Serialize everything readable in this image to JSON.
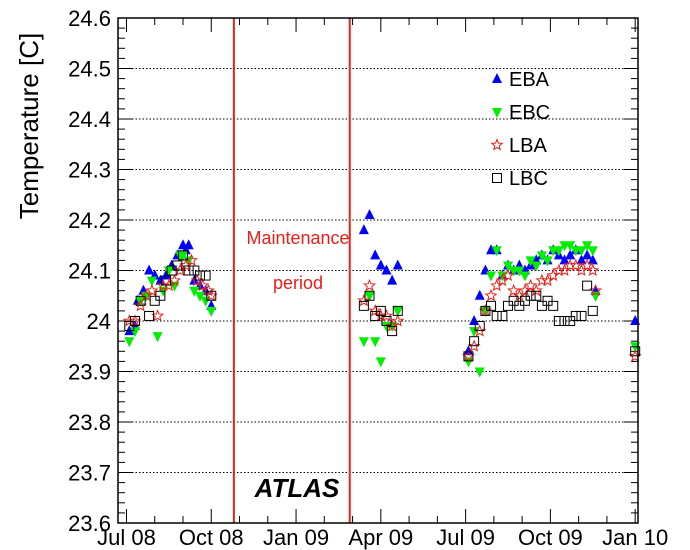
{
  "chart_data": {
    "type": "scatter",
    "title": "",
    "xlabel": "",
    "ylabel": "Temperature [C]",
    "ylim": [
      23.6,
      24.6
    ],
    "y_ticks": [
      23.6,
      23.7,
      23.8,
      23.9,
      24.0,
      24.1,
      24.2,
      24.3,
      24.4,
      24.5,
      24.6
    ],
    "y_tick_labels": [
      "23.6",
      "23.7",
      "23.8",
      "23.9",
      "24",
      "24.1",
      "24.2",
      "24.3",
      "24.4",
      "24.5",
      "24.6"
    ],
    "x_unit": "months since Jul 08",
    "xlim": [
      -0.3,
      18.1
    ],
    "x_ticks": [
      0,
      3,
      6,
      9,
      12,
      15,
      18
    ],
    "x_tick_labels": [
      "Jul 08",
      "Oct 08",
      "Jan 09",
      "Apr 09",
      "Jul 09",
      "Oct 09",
      "Jan 10"
    ],
    "grid": true,
    "legend_position": "top-right",
    "vertical_lines": [
      3.8,
      7.9
    ],
    "annotations": [
      "Maintenance",
      "period",
      "ATLAS"
    ],
    "series": [
      {
        "name": "EBA",
        "marker": "triangle-up",
        "color": "#0000ff",
        "points": [
          [
            0.1,
            23.98
          ],
          [
            0.3,
            23.99
          ],
          [
            0.4,
            24.04
          ],
          [
            0.6,
            24.06
          ],
          [
            0.8,
            24.1
          ],
          [
            1.0,
            24.09
          ],
          [
            1.2,
            24.08
          ],
          [
            1.4,
            24.09
          ],
          [
            1.6,
            24.11
          ],
          [
            1.8,
            24.13
          ],
          [
            2.0,
            24.15
          ],
          [
            2.1,
            24.14
          ],
          [
            2.2,
            24.15
          ],
          [
            2.4,
            24.08
          ],
          [
            2.6,
            24.07
          ],
          [
            2.8,
            24.06
          ],
          [
            3.0,
            24.03
          ],
          [
            8.4,
            24.18
          ],
          [
            8.6,
            24.21
          ],
          [
            8.8,
            24.13
          ],
          [
            9.0,
            24.11
          ],
          [
            9.2,
            24.1
          ],
          [
            9.4,
            24.08
          ],
          [
            9.6,
            24.11
          ],
          [
            12.1,
            23.94
          ],
          [
            12.3,
            24.0
          ],
          [
            12.5,
            24.05
          ],
          [
            12.7,
            24.1
          ],
          [
            12.9,
            24.14
          ],
          [
            13.1,
            24.14
          ],
          [
            13.3,
            24.09
          ],
          [
            13.5,
            24.11
          ],
          [
            13.7,
            24.1
          ],
          [
            13.9,
            24.11
          ],
          [
            14.1,
            24.1
          ],
          [
            14.3,
            24.11
          ],
          [
            14.5,
            24.12
          ],
          [
            14.7,
            24.13
          ],
          [
            14.9,
            24.12
          ],
          [
            15.1,
            24.14
          ],
          [
            15.3,
            24.13
          ],
          [
            15.5,
            24.12
          ],
          [
            15.7,
            24.13
          ],
          [
            15.9,
            24.14
          ],
          [
            16.1,
            24.12
          ],
          [
            16.3,
            24.13
          ],
          [
            16.5,
            24.12
          ],
          [
            16.6,
            24.06
          ],
          [
            18.0,
            24.0
          ]
        ]
      },
      {
        "name": "EBC",
        "marker": "triangle-down",
        "color": "#00ee00",
        "points": [
          [
            0.1,
            23.96
          ],
          [
            0.3,
            23.98
          ],
          [
            0.5,
            24.04
          ],
          [
            0.7,
            24.05
          ],
          [
            0.9,
            24.08
          ],
          [
            1.1,
            23.97
          ],
          [
            1.3,
            24.06
          ],
          [
            1.5,
            24.1
          ],
          [
            1.7,
            24.07
          ],
          [
            1.9,
            24.13
          ],
          [
            2.0,
            24.13
          ],
          [
            2.2,
            24.12
          ],
          [
            2.4,
            24.06
          ],
          [
            2.6,
            24.05
          ],
          [
            2.8,
            24.04
          ],
          [
            3.0,
            24.02
          ],
          [
            8.4,
            23.96
          ],
          [
            8.6,
            24.05
          ],
          [
            8.8,
            23.96
          ],
          [
            9.0,
            23.92
          ],
          [
            9.2,
            23.99
          ],
          [
            9.4,
            23.99
          ],
          [
            9.6,
            24.02
          ],
          [
            12.1,
            23.92
          ],
          [
            12.3,
            23.98
          ],
          [
            12.5,
            23.9
          ],
          [
            12.7,
            24.02
          ],
          [
            12.9,
            24.09
          ],
          [
            13.1,
            24.14
          ],
          [
            13.3,
            24.09
          ],
          [
            13.5,
            24.11
          ],
          [
            13.7,
            24.1
          ],
          [
            13.9,
            24.1
          ],
          [
            14.1,
            24.09
          ],
          [
            14.3,
            24.12
          ],
          [
            14.5,
            24.11
          ],
          [
            14.7,
            24.13
          ],
          [
            14.9,
            24.12
          ],
          [
            15.1,
            24.14
          ],
          [
            15.3,
            24.14
          ],
          [
            15.5,
            24.15
          ],
          [
            15.7,
            24.15
          ],
          [
            15.9,
            24.14
          ],
          [
            16.1,
            24.14
          ],
          [
            16.3,
            24.15
          ],
          [
            16.5,
            24.14
          ],
          [
            16.6,
            24.05
          ],
          [
            18.0,
            23.95
          ]
        ]
      },
      {
        "name": "LBA",
        "marker": "open-star",
        "color": "#e8201a",
        "points": [
          [
            0.1,
            24.0
          ],
          [
            0.3,
            24.0
          ],
          [
            0.5,
            24.03
          ],
          [
            0.7,
            24.05
          ],
          [
            0.9,
            24.06
          ],
          [
            1.1,
            24.01
          ],
          [
            1.3,
            24.07
          ],
          [
            1.5,
            24.07
          ],
          [
            1.7,
            24.08
          ],
          [
            1.9,
            24.1
          ],
          [
            2.1,
            24.11
          ],
          [
            2.3,
            24.12
          ],
          [
            2.5,
            24.08
          ],
          [
            2.7,
            24.07
          ],
          [
            2.9,
            24.06
          ],
          [
            3.0,
            24.05
          ],
          [
            8.4,
            24.04
          ],
          [
            8.6,
            24.07
          ],
          [
            8.8,
            24.02
          ],
          [
            9.0,
            24.01
          ],
          [
            9.2,
            24.01
          ],
          [
            9.4,
            23.99
          ],
          [
            9.6,
            24.0
          ],
          [
            12.1,
            23.93
          ],
          [
            12.3,
            23.95
          ],
          [
            12.5,
            23.98
          ],
          [
            12.7,
            24.02
          ],
          [
            12.9,
            24.05
          ],
          [
            13.1,
            24.07
          ],
          [
            13.3,
            24.08
          ],
          [
            13.5,
            24.09
          ],
          [
            13.7,
            24.06
          ],
          [
            13.9,
            24.05
          ],
          [
            14.1,
            24.06
          ],
          [
            14.3,
            24.07
          ],
          [
            14.5,
            24.06
          ],
          [
            14.7,
            24.08
          ],
          [
            14.9,
            24.08
          ],
          [
            15.1,
            24.09
          ],
          [
            15.3,
            24.1
          ],
          [
            15.5,
            24.1
          ],
          [
            15.7,
            24.11
          ],
          [
            15.9,
            24.11
          ],
          [
            16.1,
            24.1
          ],
          [
            16.3,
            24.11
          ],
          [
            16.5,
            24.1
          ],
          [
            16.6,
            24.06
          ],
          [
            18.0,
            23.93
          ]
        ]
      },
      {
        "name": "LBC",
        "marker": "open-square",
        "color": "#000000",
        "points": [
          [
            0.1,
            23.99
          ],
          [
            0.3,
            24.0
          ],
          [
            0.5,
            24.04
          ],
          [
            0.8,
            24.01
          ],
          [
            1.0,
            24.04
          ],
          [
            1.2,
            24.05
          ],
          [
            1.4,
            24.08
          ],
          [
            1.6,
            24.1
          ],
          [
            1.8,
            24.11
          ],
          [
            2.0,
            24.13
          ],
          [
            2.2,
            24.1
          ],
          [
            2.4,
            24.1
          ],
          [
            2.6,
            24.09
          ],
          [
            2.8,
            24.09
          ],
          [
            3.0,
            24.05
          ],
          [
            8.4,
            24.03
          ],
          [
            8.6,
            24.05
          ],
          [
            8.8,
            24.01
          ],
          [
            9.0,
            24.02
          ],
          [
            9.2,
            24.0
          ],
          [
            9.4,
            23.98
          ],
          [
            9.6,
            24.02
          ],
          [
            12.1,
            23.93
          ],
          [
            12.3,
            23.96
          ],
          [
            12.5,
            23.99
          ],
          [
            12.7,
            24.02
          ],
          [
            12.9,
            24.03
          ],
          [
            13.1,
            24.01
          ],
          [
            13.3,
            24.01
          ],
          [
            13.5,
            24.03
          ],
          [
            13.7,
            24.04
          ],
          [
            13.9,
            24.03
          ],
          [
            14.1,
            24.04
          ],
          [
            14.3,
            24.05
          ],
          [
            14.5,
            24.05
          ],
          [
            14.7,
            24.03
          ],
          [
            14.9,
            24.04
          ],
          [
            15.1,
            24.03
          ],
          [
            15.3,
            24.0
          ],
          [
            15.5,
            24.0
          ],
          [
            15.7,
            24.0
          ],
          [
            15.9,
            24.01
          ],
          [
            16.1,
            24.01
          ],
          [
            16.3,
            24.07
          ],
          [
            16.5,
            24.02
          ],
          [
            18.0,
            23.94
          ]
        ]
      }
    ]
  }
}
